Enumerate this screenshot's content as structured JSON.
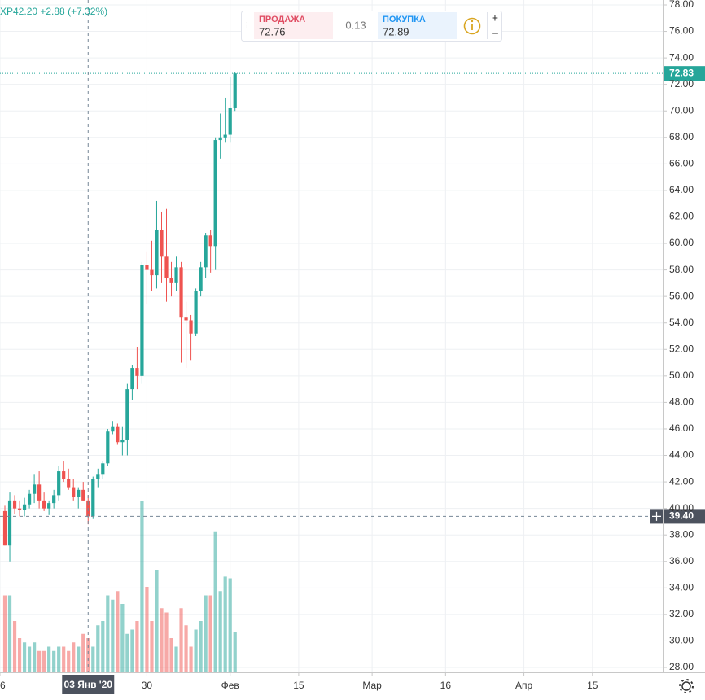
{
  "chart_data": {
    "type": "candlestick",
    "header_text": "ХР42.20 +2.88 (+7.32%)",
    "widget": {
      "sell_label": "ПРОДАЖА",
      "sell": "72.76",
      "spread": "0.13",
      "buy_label": "ПОКУПКА",
      "buy": "72.89"
    },
    "up_color": "#26a69a",
    "down_color": "#ef5350",
    "grid": true,
    "xlim": [
      0,
      135.5
    ],
    "xticks": [
      {
        "value": 0,
        "label": "6"
      },
      30,
      {
        "value": 47,
        "label": "Фев"
      },
      {
        "value": 61,
        "label": "15"
      },
      {
        "value": 76,
        "label": "Мар"
      },
      {
        "value": 91,
        "label": "16"
      },
      {
        "value": 107,
        "label": "Апр"
      },
      {
        "value": 121,
        "label": "15"
      }
    ],
    "ylim": [
      28,
      78
    ],
    "yticks": [
      {
        "value": 28,
        "label": "28.00"
      },
      {
        "value": 30,
        "label": "30.00"
      },
      {
        "value": 32,
        "label": "32.00"
      },
      {
        "value": 34,
        "label": "34.00"
      },
      {
        "value": 36,
        "label": "36.00"
      },
      {
        "value": 38,
        "label": "38.00"
      },
      {
        "value": 40,
        "label": "40.00"
      },
      {
        "value": 42,
        "label": "42.00"
      },
      {
        "value": 44,
        "label": "44.00"
      },
      {
        "value": 46,
        "label": "46.00"
      },
      {
        "value": 48,
        "label": "48.00"
      },
      {
        "value": 50,
        "label": "50.00"
      },
      {
        "value": 52,
        "label": "52.00"
      },
      {
        "value": 54,
        "label": "54.00"
      },
      {
        "value": 56,
        "label": "56.00"
      },
      {
        "value": 58,
        "label": "58.00"
      },
      {
        "value": 60,
        "label": "60.00"
      },
      {
        "value": 62,
        "label": "62.00"
      },
      {
        "value": 64,
        "label": "64.00"
      },
      {
        "value": 66,
        "label": "66.00"
      },
      {
        "value": 68,
        "label": "68.00"
      },
      {
        "value": 70,
        "label": "70.00"
      },
      {
        "value": 72,
        "label": "72.00"
      },
      {
        "value": 74,
        "label": "74.00"
      },
      {
        "value": 76,
        "label": "76.00"
      },
      {
        "value": 78,
        "label": "78.00"
      }
    ],
    "x": [
      1,
      2,
      3,
      4,
      5,
      6,
      7,
      8,
      9,
      10,
      11,
      12,
      13,
      14,
      15,
      16,
      17,
      18,
      19,
      20,
      21,
      22,
      23,
      24,
      25,
      26,
      27,
      28,
      29,
      30,
      31,
      32,
      33,
      34,
      35,
      36,
      37,
      38,
      39,
      40,
      41,
      42,
      43,
      44,
      45,
      46,
      47,
      48
    ],
    "open": [
      39.8,
      37.2,
      40.6,
      40.0,
      39.9,
      40.3,
      41.1,
      41.8,
      40.6,
      40.0,
      40.4,
      41.0,
      42.8,
      42.2,
      41.6,
      40.9,
      41.4,
      40.6,
      39.4,
      42.2,
      42.6,
      43.4,
      45.8,
      46.2,
      45.0,
      45.2,
      49.0,
      50.6,
      50.0,
      58.4,
      58.0,
      57.6,
      61.0,
      59.0,
      57.4,
      57.0,
      58.2,
      54.4,
      54.2,
      53.2,
      56.4,
      58.2,
      60.6,
      59.8,
      67.8,
      68.0,
      68.2,
      70.2
    ],
    "high": [
      40.2,
      41.2,
      41.0,
      40.6,
      40.8,
      41.4,
      42.6,
      42.8,
      41.2,
      40.6,
      41.4,
      43.2,
      43.6,
      43.0,
      42.2,
      41.6,
      42.0,
      41.0,
      42.4,
      43.0,
      43.6,
      46.0,
      46.6,
      46.4,
      46.2,
      49.4,
      50.8,
      52.2,
      58.6,
      59.4,
      60.2,
      63.2,
      62.4,
      62.6,
      58.6,
      59.0,
      58.6,
      55.6,
      54.6,
      56.6,
      58.6,
      60.8,
      61.0,
      68.0,
      69.8,
      71.0,
      72.6,
      72.9
    ],
    "low": [
      37.2,
      36.0,
      39.6,
      39.4,
      39.4,
      40.0,
      40.4,
      40.0,
      39.8,
      39.5,
      40.0,
      40.6,
      42.0,
      41.4,
      40.6,
      40.0,
      40.6,
      38.8,
      39.2,
      41.6,
      42.2,
      43.2,
      45.6,
      44.8,
      44.0,
      44.0,
      48.2,
      49.0,
      49.4,
      55.4,
      56.4,
      56.6,
      57.0,
      55.6,
      56.0,
      56.4,
      51.0,
      50.6,
      51.2,
      53.0,
      56.0,
      57.4,
      57.8,
      58.0,
      66.4,
      67.6,
      67.6,
      70.0
    ],
    "close": [
      37.2,
      40.6,
      40.0,
      39.9,
      40.3,
      41.1,
      41.8,
      40.6,
      40.0,
      40.4,
      41.0,
      42.8,
      42.2,
      41.6,
      40.9,
      41.4,
      40.6,
      39.4,
      42.2,
      42.6,
      43.4,
      45.8,
      46.2,
      45.0,
      45.2,
      49.0,
      50.6,
      50.0,
      58.4,
      58.0,
      57.6,
      61.0,
      59.0,
      57.4,
      57.0,
      58.2,
      54.4,
      54.2,
      53.2,
      56.4,
      58.2,
      60.6,
      59.8,
      67.8,
      68.0,
      68.2,
      70.2,
      72.83
    ],
    "volume": [
      90,
      90,
      60,
      40,
      35,
      30,
      35,
      25,
      25,
      30,
      25,
      30,
      30,
      25,
      35,
      30,
      45,
      40,
      30,
      55,
      60,
      90,
      85,
      95,
      80,
      45,
      50,
      60,
      200,
      100,
      60,
      120,
      75,
      70,
      40,
      30,
      75,
      55,
      30,
      50,
      60,
      90,
      90,
      165,
      95,
      112,
      110,
      47
    ],
    "last_price": 72.83,
    "crosshair": {
      "price": {
        "value": 39.4,
        "label": "39.40"
      },
      "x": 18,
      "date": "03 Янв '20"
    }
  }
}
